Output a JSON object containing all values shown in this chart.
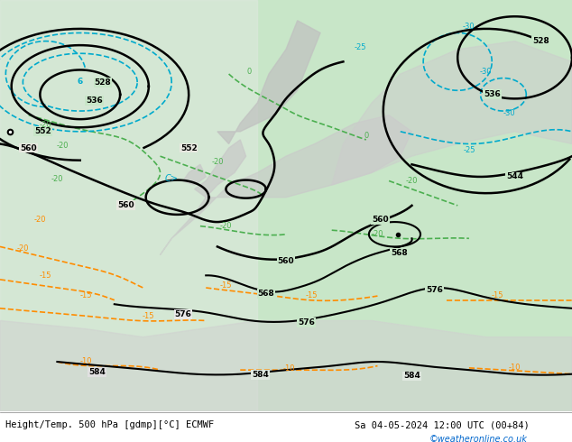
{
  "title_left": "Height/Temp. 500 hPa [gdmp][°C] ECMWF",
  "title_right": "Sa 04-05-2024 12:00 UTC (00+84)",
  "watermark": "©weatheronline.co.uk",
  "bg_map_color": "#c8e6c8",
  "land_color": "#d0d0d0",
  "ocean_light": "#e8e8e8",
  "black_contour_color": "#000000",
  "green_contour_color": "#4caf50",
  "blue_contour_color": "#00aacc",
  "orange_contour_color": "#ff8c00",
  "bottom_bar_color": "#f0f0f0",
  "text_color_left": "#000000",
  "text_color_right": "#000000",
  "watermark_color": "#0066cc",
  "fig_width": 6.34,
  "fig_height": 4.9,
  "dpi": 100
}
